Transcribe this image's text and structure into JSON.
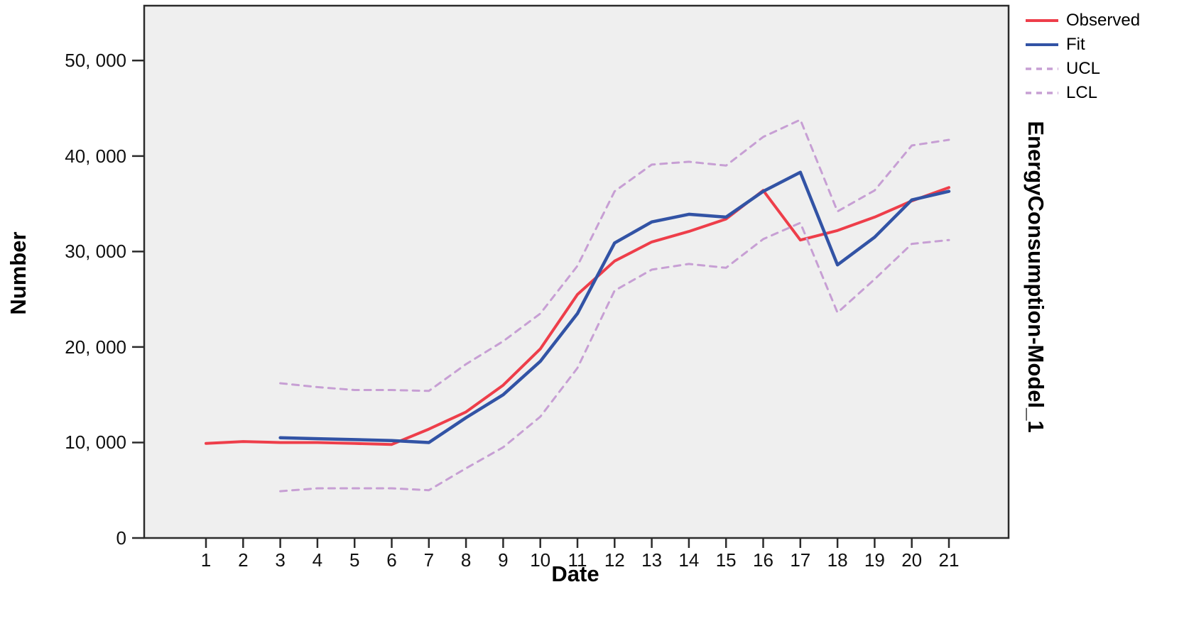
{
  "colors": {
    "observed": "#ee3e4a",
    "fit": "#3253a5",
    "confidence": "#c79fd4",
    "plot_background": "#efefef",
    "frame": "#2b2b2b",
    "text": "#000000"
  },
  "legend": {
    "items": [
      {
        "label": "Observed",
        "color": "#ee3e4a",
        "dashed": false
      },
      {
        "label": "Fit",
        "color": "#3253a5",
        "dashed": false
      },
      {
        "label": "UCL",
        "color": "#c79fd4",
        "dashed": true
      },
      {
        "label": "LCL",
        "color": "#c79fd4",
        "dashed": true
      }
    ]
  },
  "chart_data": {
    "type": "line",
    "title": "",
    "right_label": "EnergyConsumption-Model_1",
    "xlabel": "Date",
    "ylabel": "Number",
    "x": [
      1,
      2,
      3,
      4,
      5,
      6,
      7,
      8,
      9,
      10,
      11,
      12,
      13,
      14,
      15,
      16,
      17,
      18,
      19,
      20,
      21
    ],
    "x_tick_labels": [
      "1",
      "2",
      "3",
      "4",
      "5",
      "6",
      "7",
      "8",
      "9",
      "10",
      "11",
      "12",
      "13",
      "14",
      "15",
      "16",
      "17",
      "18",
      "19",
      "20",
      "21"
    ],
    "y_ticks": [
      0,
      10000,
      20000,
      30000,
      40000,
      50000
    ],
    "y_tick_labels": [
      "0",
      "10, 000",
      "20, 000",
      "30, 000",
      "40, 000",
      "50, 000"
    ],
    "ylim": [
      0,
      55800
    ],
    "grid": false,
    "legend_position": "top-right-outside",
    "series": [
      {
        "name": "Observed",
        "color": "#ee3e4a",
        "dashed": false,
        "width": 4,
        "values": [
          9900,
          10100,
          10000,
          10000,
          9900,
          9800,
          11400,
          13200,
          16000,
          19800,
          25500,
          29000,
          31000,
          32100,
          33400,
          36400,
          31200,
          32200,
          33600,
          35300,
          36700
        ]
      },
      {
        "name": "Fit",
        "color": "#3253a5",
        "dashed": false,
        "width": 4.5,
        "values": [
          null,
          null,
          10500,
          10400,
          10300,
          10200,
          10000,
          12600,
          15000,
          18500,
          23500,
          30900,
          33100,
          33900,
          33600,
          36300,
          38300,
          28600,
          31500,
          35400,
          36300
        ]
      },
      {
        "name": "UCL",
        "color": "#c79fd4",
        "dashed": true,
        "width": 3,
        "values": [
          null,
          null,
          16200,
          15800,
          15500,
          15500,
          15400,
          18200,
          20600,
          23500,
          28500,
          36300,
          39100,
          39400,
          39000,
          42000,
          43800,
          34200,
          36400,
          41100,
          41700
        ]
      },
      {
        "name": "LCL",
        "color": "#c79fd4",
        "dashed": true,
        "width": 3,
        "values": [
          null,
          null,
          4900,
          5200,
          5200,
          5200,
          5000,
          7300,
          9500,
          12700,
          17800,
          25900,
          28100,
          28700,
          28300,
          31300,
          33000,
          23600,
          27100,
          30800,
          31200
        ]
      }
    ]
  }
}
